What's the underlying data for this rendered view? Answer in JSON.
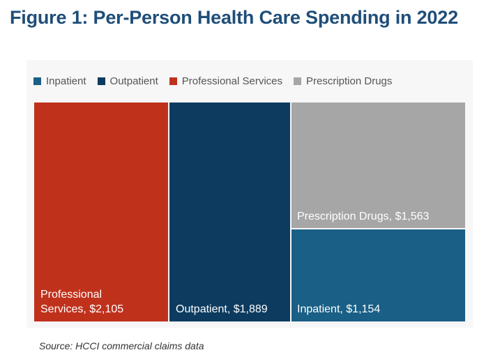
{
  "title": "Figure 1: Per-Person Health Care Spending in 2022",
  "source": "Source: HCCI commercial claims data",
  "chart_data": {
    "type": "treemap",
    "legend": [
      {
        "name": "Inpatient",
        "color": "#1a5f86"
      },
      {
        "name": "Outpatient",
        "color": "#0c3b5f"
      },
      {
        "name": "Professional Services",
        "color": "#c0311c"
      },
      {
        "name": "Prescription Drugs",
        "color": "#a6a6a6"
      }
    ],
    "items": [
      {
        "name": "Professional Services",
        "value": 2105,
        "label": "Professional\nServices, $2,105",
        "color": "#c0311c"
      },
      {
        "name": "Outpatient",
        "value": 1889,
        "label": "Outpatient,  $1,889",
        "color": "#0c3b5f"
      },
      {
        "name": "Prescription Drugs",
        "value": 1563,
        "label": "Prescription Drugs,  $1,563",
        "color": "#a6a6a6"
      },
      {
        "name": "Inpatient",
        "value": 1154,
        "label": "Inpatient,  $1,154",
        "color": "#1a5f86"
      }
    ],
    "legend_position": "top"
  }
}
